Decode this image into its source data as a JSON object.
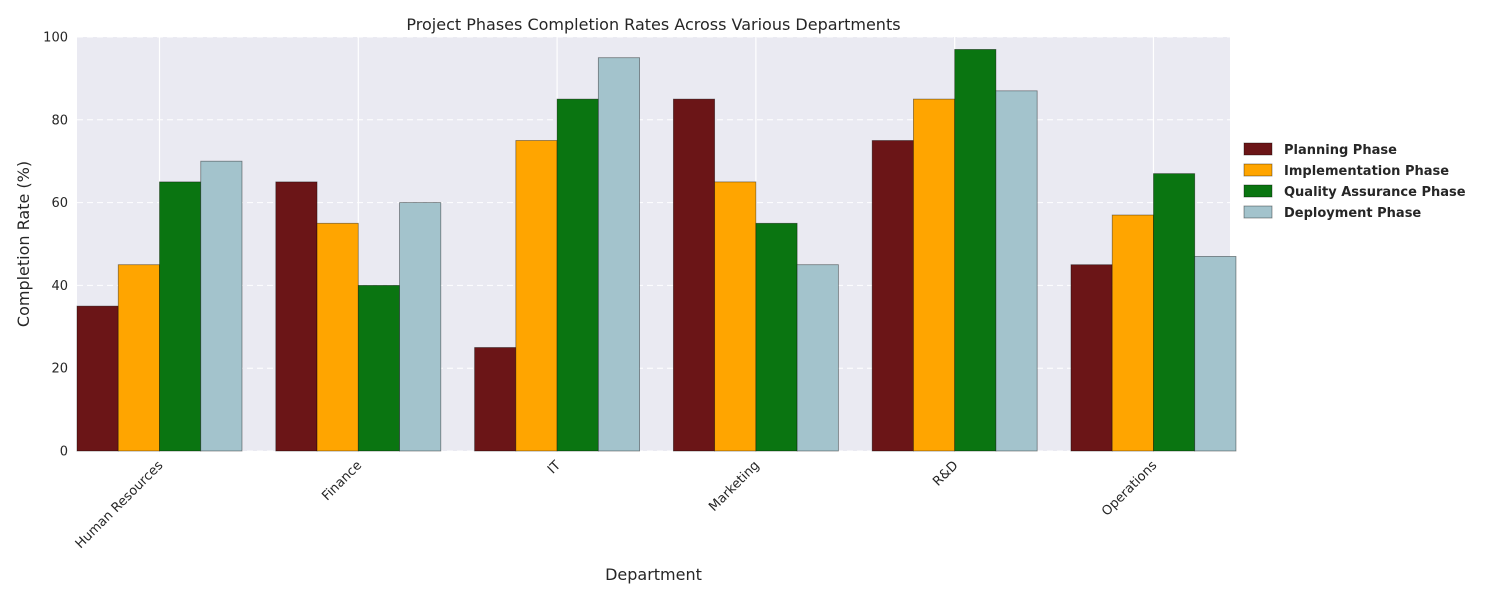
{
  "chart_data": {
    "type": "bar",
    "title": "Project Phases Completion Rates Across Various Departments",
    "xlabel": "Department",
    "ylabel": "Completion Rate (%)",
    "ylim": [
      0,
      100
    ],
    "yticks": [
      0,
      20,
      40,
      60,
      80,
      100
    ],
    "grid": true,
    "legend_position": "right",
    "categories": [
      "Human Resources",
      "Finance",
      "IT",
      "Marketing",
      "R&D",
      "Operations"
    ],
    "series": [
      {
        "name": "Planning Phase",
        "color": "#6b1517",
        "values": [
          35,
          65,
          25,
          85,
          75,
          45
        ]
      },
      {
        "name": "Implementation Phase",
        "color": "#ffa500",
        "values": [
          45,
          55,
          75,
          65,
          85,
          57
        ]
      },
      {
        "name": "Quality Assurance Phase",
        "color": "#0a7511",
        "values": [
          65,
          40,
          85,
          55,
          97,
          67
        ]
      },
      {
        "name": "Deployment Phase",
        "color": "#a3c3cc",
        "values": [
          70,
          60,
          95,
          45,
          87,
          47
        ]
      }
    ]
  }
}
